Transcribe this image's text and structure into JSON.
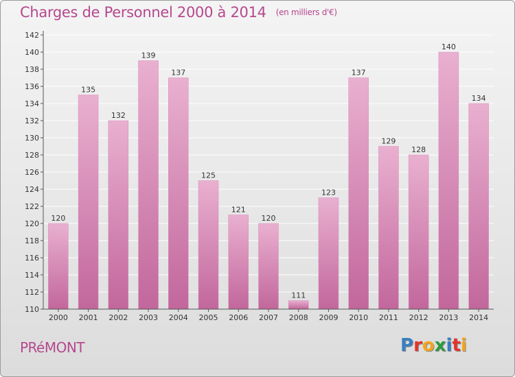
{
  "title": "Charges de Personnel 2000 à 2014",
  "subtitle": "(en milliers d'€)",
  "place": "PRéMONT",
  "logo": {
    "text": "Proxiti",
    "letter_colors": [
      "#3a7fc1",
      "#e2352a",
      "#f2a51c",
      "#2e9b3c",
      "#3a7fc1",
      "#e2352a",
      "#f2a51c"
    ]
  },
  "colors": {
    "title": "#b5488e",
    "bar_light": "#e9b0d0",
    "bar_dark": "#c2679c",
    "axis": "#555555",
    "grid": "#ffffff"
  },
  "chart_data": {
    "type": "bar",
    "categories": [
      "2000",
      "2001",
      "2002",
      "2003",
      "2004",
      "2005",
      "2006",
      "2007",
      "2008",
      "2009",
      "2010",
      "2011",
      "2012",
      "2013",
      "2014"
    ],
    "values": [
      120,
      135,
      132,
      139,
      137,
      125,
      121,
      120,
      111,
      123,
      137,
      129,
      128,
      140,
      134
    ],
    "ylim": [
      110,
      142
    ],
    "yticks": [
      110,
      112,
      114,
      116,
      118,
      120,
      122,
      124,
      126,
      128,
      130,
      132,
      134,
      136,
      138,
      140,
      142
    ],
    "grid": true,
    "data_labels": true
  }
}
